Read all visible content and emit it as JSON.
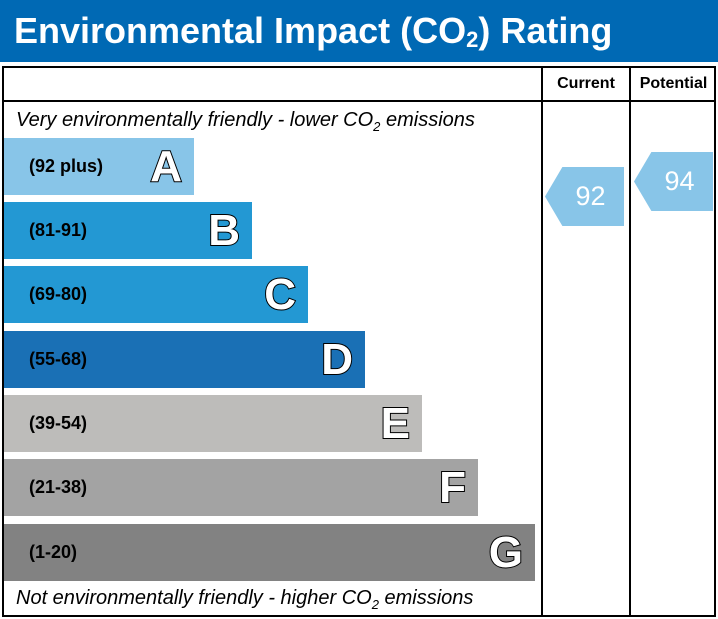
{
  "title": {
    "main": "Environmental Impact (CO",
    "sub": "2",
    "end": ") Rating"
  },
  "columns": {
    "current": "Current",
    "potential": "Potential"
  },
  "notes": {
    "top": {
      "pre": "Very environmentally friendly - lower CO",
      "sub": "2",
      "post": " emissions"
    },
    "bottom": {
      "pre": "Not environmentally friendly - higher CO",
      "sub": "2",
      "post": " emissions"
    }
  },
  "chart_data": {
    "type": "bar",
    "bands": [
      {
        "letter": "A",
        "range": "(92 plus)",
        "color": "#88c5e8"
      },
      {
        "letter": "B",
        "range": "(81-91)",
        "color": "#2398d3"
      },
      {
        "letter": "C",
        "range": "(69-80)",
        "color": "#2398d3"
      },
      {
        "letter": "D",
        "range": "(55-68)",
        "color": "#1a70b5"
      },
      {
        "letter": "E",
        "range": "(39-54)",
        "color": "#bdbcba"
      },
      {
        "letter": "F",
        "range": "(21-38)",
        "color": "#a3a3a3"
      },
      {
        "letter": "G",
        "range": "(1-20)",
        "color": "#828282"
      }
    ],
    "current": {
      "value": "92",
      "band": "A",
      "color": "#88c5e8"
    },
    "potential": {
      "value": "94",
      "band": "A",
      "color": "#88c5e8"
    }
  }
}
